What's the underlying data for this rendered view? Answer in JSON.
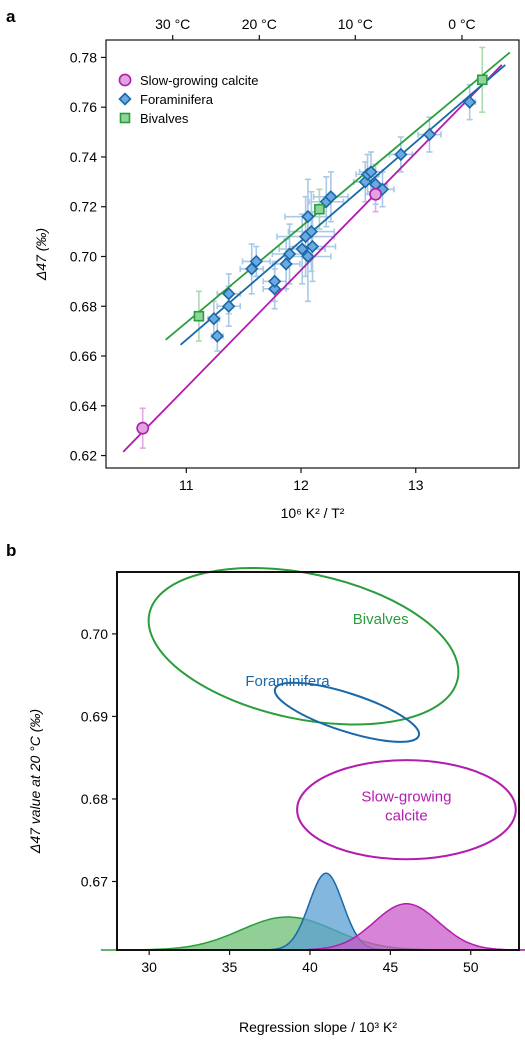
{
  "chart_data": [
    {
      "panel_label": "a",
      "type": "scatter",
      "xlabel": "10⁶ K² / T²",
      "ylabel": "Δ47 (‰)",
      "xlim": [
        10.3,
        13.9
      ],
      "ylim": [
        0.615,
        0.787
      ],
      "xticks": [
        11,
        12,
        13
      ],
      "xtick_labels": [
        "11",
        "12",
        "13"
      ],
      "yticks": [
        0.62,
        0.64,
        0.66,
        0.68,
        0.7,
        0.72,
        0.74,
        0.76,
        0.78
      ],
      "ytick_labels": [
        "0.62",
        "0.64",
        "0.66",
        "0.68",
        "0.70",
        "0.72",
        "0.74",
        "0.76",
        "0.78"
      ],
      "top_axis_labels": [
        "30 °C",
        "20 °C",
        "10 °C",
        "0 °C"
      ],
      "top_axis_celsius": [
        30,
        20,
        10,
        0
      ],
      "legend_position": "top-left",
      "grid": false,
      "series": [
        {
          "name": "Slow-growing calcite",
          "color": "#b21caf",
          "fill": "#e0a3df",
          "marker": "circle",
          "points": [
            {
              "x": 10.62,
              "y": 0.631,
              "ey": 0.008,
              "ex": 0
            },
            {
              "x": 12.65,
              "y": 0.725,
              "ey": 0.007,
              "ex": 0
            }
          ],
          "fit": {
            "x": [
              10.45,
              13.75
            ],
            "y": [
              0.6215,
              0.777
            ]
          }
        },
        {
          "name": "Foraminifera",
          "color": "#1a68a8",
          "fill": "#6aaae0",
          "marker": "diamond",
          "points": [
            {
              "x": 11.24,
              "y": 0.675,
              "ey": 0.007,
              "ex": 0.05
            },
            {
              "x": 11.27,
              "y": 0.668,
              "ey": 0.006,
              "ex": 0.05
            },
            {
              "x": 11.37,
              "y": 0.68,
              "ey": 0.008,
              "ex": 0.1
            },
            {
              "x": 11.37,
              "y": 0.685,
              "ey": 0.008,
              "ex": 0.1
            },
            {
              "x": 11.57,
              "y": 0.695,
              "ey": 0.01,
              "ex": 0.1
            },
            {
              "x": 11.61,
              "y": 0.698,
              "ey": 0.006,
              "ex": 0.12
            },
            {
              "x": 11.77,
              "y": 0.687,
              "ey": 0.008,
              "ex": 0.1
            },
            {
              "x": 11.77,
              "y": 0.69,
              "ey": 0.008,
              "ex": 0.1
            },
            {
              "x": 11.87,
              "y": 0.697,
              "ey": 0.01,
              "ex": 0.12
            },
            {
              "x": 11.9,
              "y": 0.701,
              "ey": 0.012,
              "ex": 0.15
            },
            {
              "x": 12.01,
              "y": 0.703,
              "ey": 0.014,
              "ex": 0.2
            },
            {
              "x": 12.04,
              "y": 0.708,
              "ey": 0.016,
              "ex": 0.25
            },
            {
              "x": 12.06,
              "y": 0.7,
              "ey": 0.018,
              "ex": 0.2
            },
            {
              "x": 12.06,
              "y": 0.716,
              "ey": 0.015,
              "ex": 0.2
            },
            {
              "x": 12.1,
              "y": 0.704,
              "ey": 0.014,
              "ex": 0.2
            },
            {
              "x": 12.09,
              "y": 0.71,
              "ey": 0.016,
              "ex": 0.2
            },
            {
              "x": 12.22,
              "y": 0.722,
              "ey": 0.01,
              "ex": 0.15
            },
            {
              "x": 12.26,
              "y": 0.724,
              "ey": 0.01,
              "ex": 0.15
            },
            {
              "x": 12.56,
              "y": 0.73,
              "ey": 0.008,
              "ex": 0.1
            },
            {
              "x": 12.58,
              "y": 0.733,
              "ey": 0.008,
              "ex": 0.1
            },
            {
              "x": 12.61,
              "y": 0.734,
              "ey": 0.008,
              "ex": 0.1
            },
            {
              "x": 12.65,
              "y": 0.729,
              "ey": 0.008,
              "ex": 0.1
            },
            {
              "x": 12.71,
              "y": 0.727,
              "ey": 0.007,
              "ex": 0.1
            },
            {
              "x": 12.87,
              "y": 0.741,
              "ey": 0.007,
              "ex": 0.1
            },
            {
              "x": 13.12,
              "y": 0.749,
              "ey": 0.007,
              "ex": 0.1
            },
            {
              "x": 13.47,
              "y": 0.762,
              "ey": 0.007,
              "ex": 0.05
            }
          ],
          "fit": {
            "x": [
              10.95,
              13.78
            ],
            "y": [
              0.6645,
              0.777
            ]
          }
        },
        {
          "name": "Bivalves",
          "color": "#2a9d3c",
          "fill": "#8fd49a",
          "marker": "square",
          "points": [
            {
              "x": 11.11,
              "y": 0.676,
              "ey": 0.01,
              "ex": 0
            },
            {
              "x": 12.16,
              "y": 0.719,
              "ey": 0.008,
              "ex": 0
            },
            {
              "x": 13.58,
              "y": 0.771,
              "ey": 0.013,
              "ex": 0
            }
          ],
          "fit": {
            "x": [
              10.82,
              13.82
            ],
            "y": [
              0.6665,
              0.782
            ]
          }
        }
      ]
    },
    {
      "panel_label": "b",
      "type": "area",
      "xlabel": "Regression slope / 10³ K²",
      "ylabel": "Δ47 value at 20 °C (‰)",
      "xlim": [
        28,
        53
      ],
      "ylim": [
        0.6617,
        0.7075
      ],
      "xticks": [
        30,
        35,
        40,
        45,
        50
      ],
      "xtick_labels": [
        "30",
        "35",
        "40",
        "45",
        "50"
      ],
      "yticks": [
        0.67,
        0.68,
        0.69,
        0.7
      ],
      "ytick_labels": [
        "0.67",
        "0.68",
        "0.69",
        "0.70"
      ],
      "grid": false,
      "ellipses": [
        {
          "name": "Bivalves",
          "label": "Bivalves",
          "color": "#2a9d3c",
          "cx": 39.6,
          "cy": 0.6985,
          "rx": 9.8,
          "ry": 0.0088,
          "angle_deg": 12
        },
        {
          "name": "Foraminifera",
          "label": "Foraminifera",
          "color": "#1a68a8",
          "cx": 42.3,
          "cy": 0.6905,
          "rx": 4.7,
          "ry": 0.0023,
          "angle_deg": 18
        },
        {
          "name": "Slow-growing calcite",
          "label_lines": [
            "Slow-growing",
            "calcite"
          ],
          "color": "#b21caf",
          "cx": 46.0,
          "cy": 0.6787,
          "rx": 6.8,
          "ry": 0.006,
          "angle_deg": 0
        }
      ],
      "densities": [
        {
          "name": "Bivalves",
          "color": "#2a9d3c",
          "fill": "#6ebf74",
          "mean": 38.6,
          "sd": 2.9,
          "peak": 0.6657
        },
        {
          "name": "Foraminifera",
          "color": "#1a68a8",
          "fill": "#5a9fd2",
          "mean": 41.0,
          "sd": 1.05,
          "peak": 0.671
        },
        {
          "name": "Slow-growing calcite",
          "color": "#b21caf",
          "fill": "#c95bc8",
          "mean": 46.0,
          "sd": 2.0,
          "peak": 0.6673
        }
      ]
    }
  ]
}
